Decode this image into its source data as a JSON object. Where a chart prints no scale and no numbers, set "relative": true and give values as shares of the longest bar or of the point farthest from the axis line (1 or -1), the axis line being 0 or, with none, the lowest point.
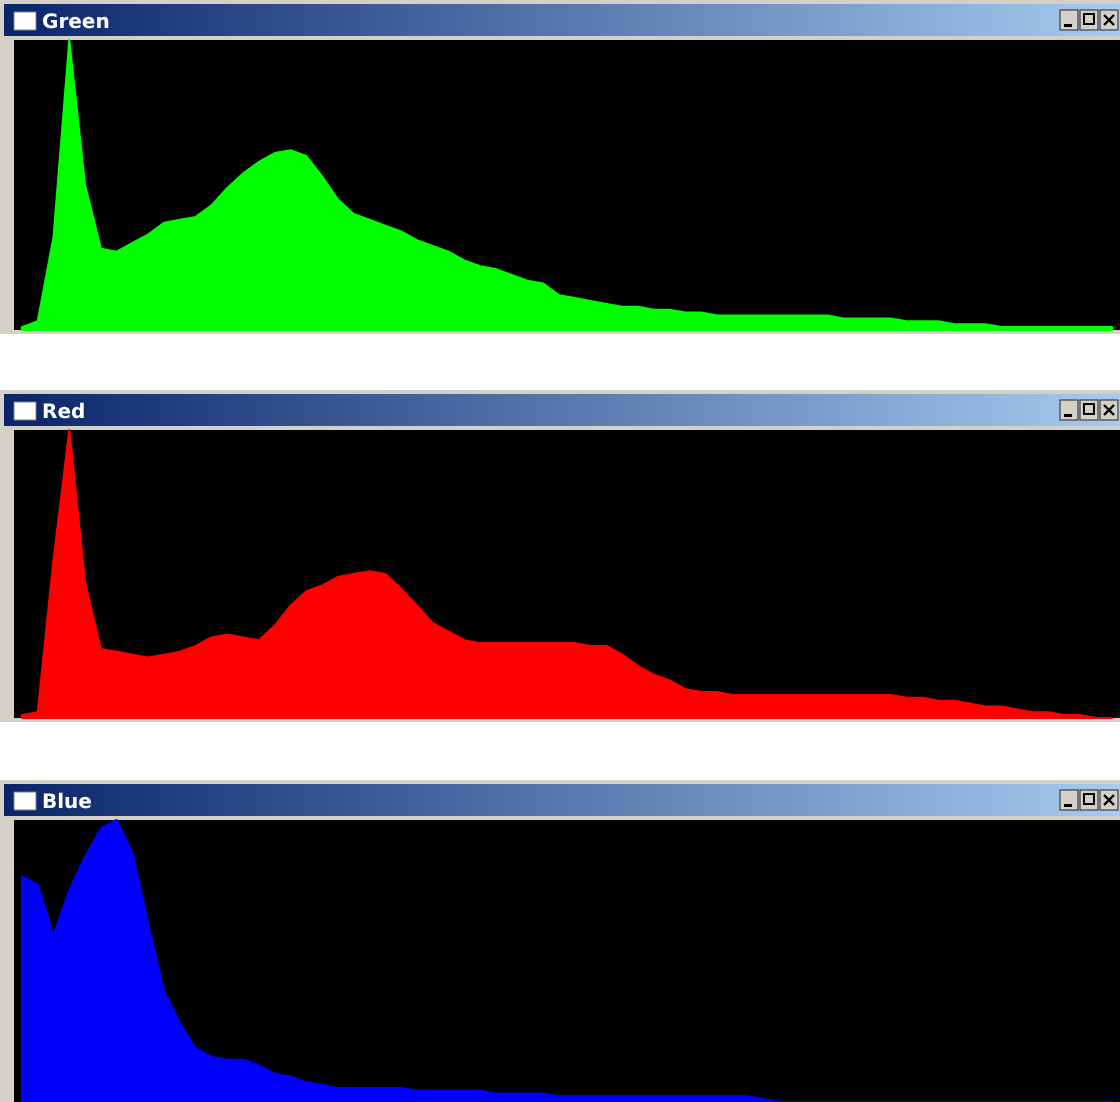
{
  "chart_data": [
    {
      "type": "area",
      "title": "Green",
      "relative": true,
      "categories": [
        null,
        null,
        null,
        null,
        null,
        null,
        null,
        null,
        null,
        null,
        null,
        null,
        null,
        null,
        null,
        null,
        null,
        null,
        null,
        null,
        null,
        null,
        null,
        null,
        null,
        null,
        null,
        null,
        null,
        null,
        null,
        null,
        null,
        null,
        null,
        null,
        null,
        null,
        null,
        null,
        null,
        null,
        null,
        null,
        null,
        null,
        null,
        null,
        null,
        null,
        null,
        null,
        null,
        null,
        null,
        null,
        null,
        null,
        null,
        null,
        null,
        null,
        null,
        null,
        null,
        null,
        null,
        null,
        null,
        null
      ],
      "series": [
        {
          "color": "#00ff00",
          "values": [
            0.01,
            0.03,
            0.32,
            1.0,
            0.5,
            0.28,
            0.27,
            0.3,
            0.33,
            0.37,
            0.38,
            0.39,
            0.43,
            0.49,
            0.54,
            0.58,
            0.61,
            0.62,
            0.6,
            0.53,
            0.45,
            0.4,
            0.38,
            0.36,
            0.34,
            0.31,
            0.29,
            0.27,
            0.24,
            0.22,
            0.21,
            0.19,
            0.17,
            0.16,
            0.12,
            0.11,
            0.1,
            0.09,
            0.08,
            0.08,
            0.07,
            0.07,
            0.06,
            0.06,
            0.05,
            0.05,
            0.05,
            0.05,
            0.05,
            0.05,
            0.05,
            0.05,
            0.04,
            0.04,
            0.04,
            0.04,
            0.03,
            0.03,
            0.03,
            0.02,
            0.02,
            0.02,
            0.01,
            0.01,
            0.01,
            0.01,
            0.01,
            0.01,
            0.01,
            0.01
          ]
        }
      ]
    },
    {
      "type": "area",
      "title": "Red",
      "relative": true,
      "categories": [
        null,
        null,
        null,
        null,
        null,
        null,
        null,
        null,
        null,
        null,
        null,
        null,
        null,
        null,
        null,
        null,
        null,
        null,
        null,
        null,
        null,
        null,
        null,
        null,
        null,
        null,
        null,
        null,
        null,
        null,
        null,
        null,
        null,
        null,
        null,
        null,
        null,
        null,
        null,
        null,
        null,
        null,
        null,
        null,
        null,
        null,
        null,
        null,
        null,
        null,
        null,
        null,
        null,
        null,
        null,
        null,
        null,
        null,
        null,
        null,
        null,
        null,
        null,
        null,
        null,
        null,
        null,
        null,
        null,
        null
      ],
      "series": [
        {
          "color": "#ff0000",
          "values": [
            0.01,
            0.02,
            0.55,
            1.0,
            0.47,
            0.24,
            0.23,
            0.22,
            0.21,
            0.22,
            0.23,
            0.25,
            0.28,
            0.29,
            0.28,
            0.27,
            0.32,
            0.39,
            0.44,
            0.46,
            0.49,
            0.5,
            0.51,
            0.5,
            0.45,
            0.39,
            0.33,
            0.3,
            0.27,
            0.26,
            0.26,
            0.26,
            0.26,
            0.26,
            0.26,
            0.26,
            0.25,
            0.25,
            0.22,
            0.18,
            0.15,
            0.13,
            0.1,
            0.09,
            0.09,
            0.08,
            0.08,
            0.08,
            0.08,
            0.08,
            0.08,
            0.08,
            0.08,
            0.08,
            0.08,
            0.08,
            0.07,
            0.07,
            0.06,
            0.06,
            0.05,
            0.04,
            0.04,
            0.03,
            0.02,
            0.02,
            0.01,
            0.01,
            0,
            0
          ]
        }
      ]
    },
    {
      "type": "area",
      "title": "Blue",
      "relative": true,
      "categories": [
        null,
        null,
        null,
        null,
        null,
        null,
        null,
        null,
        null,
        null,
        null,
        null,
        null,
        null,
        null,
        null,
        null,
        null,
        null,
        null,
        null,
        null,
        null,
        null,
        null,
        null,
        null,
        null,
        null,
        null,
        null,
        null,
        null,
        null,
        null,
        null,
        null,
        null,
        null,
        null,
        null,
        null,
        null,
        null,
        null,
        null,
        null,
        null,
        null,
        null,
        null,
        null,
        null,
        null,
        null,
        null,
        null,
        null,
        null,
        null,
        null,
        null,
        null,
        null,
        null,
        null,
        null,
        null,
        null,
        null
      ],
      "series": [
        {
          "color": "#0000ff",
          "values": [
            0.8,
            0.77,
            0.59,
            0.75,
            0.87,
            0.97,
            1.0,
            0.88,
            0.63,
            0.39,
            0.28,
            0.19,
            0.16,
            0.15,
            0.15,
            0.13,
            0.1,
            0.09,
            0.07,
            0.06,
            0.05,
            0.05,
            0.05,
            0.05,
            0.05,
            0.04,
            0.04,
            0.04,
            0.04,
            0.04,
            0.03,
            0.03,
            0.03,
            0.03,
            0.02,
            0.02,
            0.02,
            0.02,
            0.02,
            0.02,
            0.02,
            0.02,
            0.02,
            0.02,
            0.02,
            0.02,
            0.02,
            0.01,
            0,
            0,
            0,
            0,
            0,
            0,
            0,
            0,
            0,
            0,
            0,
            0,
            0,
            0,
            0,
            0,
            0,
            0,
            0,
            0,
            0,
            0
          ]
        }
      ]
    }
  ]
}
